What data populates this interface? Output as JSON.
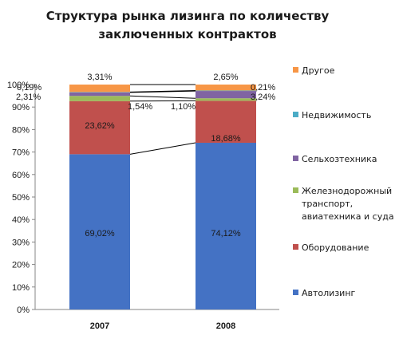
{
  "chart_data": {
    "type": "bar",
    "stacked": true,
    "title": [
      "Структура рынка лизинга по количеству",
      "заключенных контрактов"
    ],
    "categories": [
      "2007",
      "2008"
    ],
    "ylim": [
      0,
      100
    ],
    "y_ticks": [
      "0%",
      "10%",
      "20%",
      "30%",
      "40%",
      "50%",
      "60%",
      "70%",
      "80%",
      "90%",
      "100%"
    ],
    "y_unit": "%",
    "grid": false,
    "series_lines": true,
    "legend_position": "right",
    "series": [
      {
        "name": "Автолизинг",
        "color": "#4472c4",
        "values": [
          69.02,
          74.12
        ],
        "labels": [
          "69,02%",
          "74,12%"
        ]
      },
      {
        "name": "Оборудование",
        "color": "#c0504d",
        "values": [
          23.62,
          18.68
        ],
        "labels": [
          "23,62%",
          "18,68%"
        ]
      },
      {
        "name": "Железнодорожный транспорт, авиатехника и суда",
        "legend_lines": [
          "Железнодорожный",
          "транспорт,",
          "авиатехника и суда"
        ],
        "color": "#9bbb59",
        "values": [
          2.31,
          1.1
        ],
        "labels": [
          "2,31%",
          "1,10%"
        ]
      },
      {
        "name": "Сельхозтехника",
        "color": "#8064a2",
        "values": [
          1.54,
          3.24
        ],
        "labels": [
          "1,54%",
          "3,24%"
        ]
      },
      {
        "name": "Недвижимость",
        "color": "#4bacc6",
        "values": [
          0.19,
          0.21
        ],
        "labels": [
          "0,19%",
          "0,21%"
        ]
      },
      {
        "name": "Другое",
        "color": "#f79646",
        "values": [
          3.31,
          2.65
        ],
        "labels": [
          "3,31%",
          "2,65%"
        ]
      }
    ]
  }
}
